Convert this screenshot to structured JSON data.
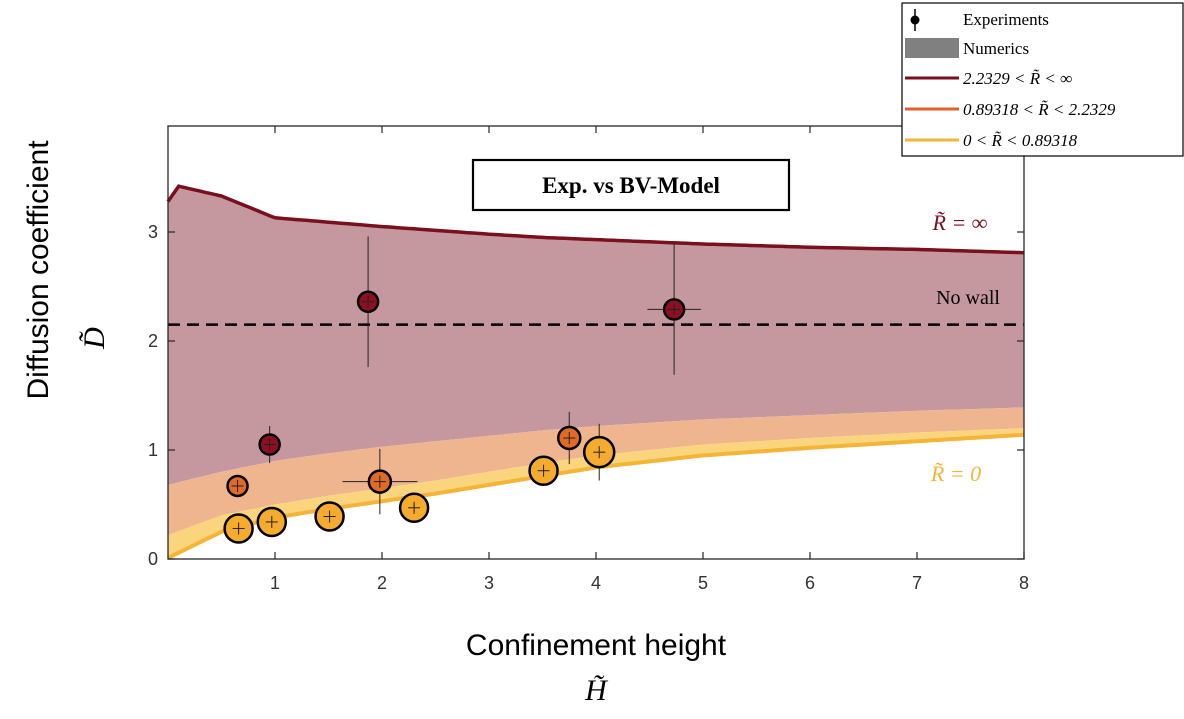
{
  "chart_data": {
    "type": "scatter",
    "title": "Exp. vs BV-Model",
    "xlabel": "Confinement height",
    "xlabel_symbol": "H̃",
    "ylabel": "Diffusion coefficient",
    "ylabel_symbol": "D̃",
    "xlim": [
      0,
      8
    ],
    "ylim": [
      0,
      3.4
    ],
    "xticks": [
      1,
      2,
      3,
      4,
      5,
      6,
      7,
      8
    ],
    "yticks": [
      0,
      1,
      2,
      3
    ],
    "grid": false,
    "legend_position": "top-right",
    "legend": [
      {
        "label": "Experiments",
        "kind": "errorbar",
        "color": "#000000"
      },
      {
        "label": "Numerics",
        "kind": "patch",
        "color": "#808080"
      },
      {
        "label": "2.2329 < R̃ < ∞",
        "kind": "line",
        "color": "#7a0f1e"
      },
      {
        "label": "0.89318 < R̃ < 2.2329",
        "kind": "line",
        "color": "#e0622a"
      },
      {
        "label": "0 < R̃ < 0.89318",
        "kind": "line",
        "color": "#f4b536"
      }
    ],
    "reference_line": {
      "label": "No wall",
      "y": 2.15,
      "style": "dashed",
      "color": "#000000"
    },
    "curves": [
      {
        "name": "R̃ = ∞",
        "color": "#7a0f1e",
        "x": [
          0.0,
          0.1,
          0.5,
          1.0,
          2.0,
          3.0,
          3.5,
          4.0,
          5.0,
          6.0,
          7.0,
          8.0
        ],
        "y": [
          3.28,
          3.42,
          3.33,
          3.13,
          3.05,
          2.98,
          2.95,
          2.93,
          2.89,
          2.86,
          2.84,
          2.81
        ]
      },
      {
        "name": "boundary-middle",
        "color": "#e0622a",
        "x": [
          0.0,
          0.5,
          1.0,
          1.5,
          2.0,
          2.5,
          3.0,
          3.5,
          4.0,
          5.0,
          6.0,
          7.0,
          8.0
        ],
        "y": [
          0.68,
          0.8,
          0.9,
          0.97,
          1.03,
          1.08,
          1.13,
          1.18,
          1.22,
          1.28,
          1.32,
          1.36,
          1.39
        ]
      },
      {
        "name": "upper-yellow",
        "color": "#f4b536",
        "x": [
          0.0,
          0.5,
          1.0,
          1.5,
          2.0,
          2.5,
          3.0,
          3.5,
          4.0,
          5.0,
          6.0,
          7.0,
          8.0
        ],
        "y": [
          0.22,
          0.4,
          0.5,
          0.58,
          0.65,
          0.72,
          0.8,
          0.88,
          0.95,
          1.05,
          1.11,
          1.16,
          1.2
        ]
      },
      {
        "name": "R̃ = 0",
        "color": "#f4b536",
        "x": [
          0.0,
          0.5,
          1.0,
          1.5,
          2.0,
          2.5,
          3.0,
          3.5,
          4.0,
          5.0,
          6.0,
          7.0,
          8.0
        ],
        "y": [
          0.01,
          0.25,
          0.38,
          0.46,
          0.53,
          0.6,
          0.68,
          0.76,
          0.84,
          0.95,
          1.02,
          1.08,
          1.14
        ]
      }
    ],
    "curve_labels": [
      {
        "text": "R̃ = ∞",
        "color": "#7a0f1e"
      },
      {
        "text": "R̃ = 0",
        "color": "#f4b536"
      },
      {
        "text": "No wall",
        "color": "#000000"
      }
    ],
    "series": [
      {
        "group": "2.2329 < R̃ < ∞",
        "color": "#8e0f22",
        "points": [
          {
            "x": 0.95,
            "y": 1.05,
            "xerr": 0.02,
            "yerr": 0.17,
            "r": 10
          },
          {
            "x": 1.87,
            "y": 2.36,
            "xerr": 0.06,
            "yerr": 0.6,
            "r": 10
          },
          {
            "x": 4.73,
            "y": 2.29,
            "xerr": 0.25,
            "yerr": 0.6,
            "r": 10
          }
        ]
      },
      {
        "group": "0.89318 < R̃ < 2.2329",
        "color": "#e06a28",
        "points": [
          {
            "x": 0.65,
            "y": 0.67,
            "xerr": 0.02,
            "yerr": 0.05,
            "r": 10
          },
          {
            "x": 1.98,
            "y": 0.71,
            "xerr": 0.35,
            "yerr": 0.3,
            "r": 11
          },
          {
            "x": 3.75,
            "y": 1.11,
            "xerr": 0.06,
            "yerr": 0.24,
            "r": 11
          }
        ]
      },
      {
        "group": "0 < R̃ < 0.89318",
        "color": "#f5ab2d",
        "points": [
          {
            "x": 0.66,
            "y": 0.28,
            "xerr": 0.03,
            "yerr": 0.04,
            "r": 14
          },
          {
            "x": 0.97,
            "y": 0.34,
            "xerr": 0.04,
            "yerr": 0.03,
            "r": 14
          },
          {
            "x": 1.51,
            "y": 0.39,
            "xerr": 0.04,
            "yerr": 0.08,
            "r": 14
          },
          {
            "x": 2.3,
            "y": 0.47,
            "xerr": 0.05,
            "yerr": 0.08,
            "r": 14
          },
          {
            "x": 3.51,
            "y": 0.81,
            "xerr": 0.06,
            "yerr": 0.1,
            "r": 14
          },
          {
            "x": 4.03,
            "y": 0.98,
            "xerr": 0.08,
            "yerr": 0.26,
            "r": 15
          }
        ]
      }
    ]
  }
}
